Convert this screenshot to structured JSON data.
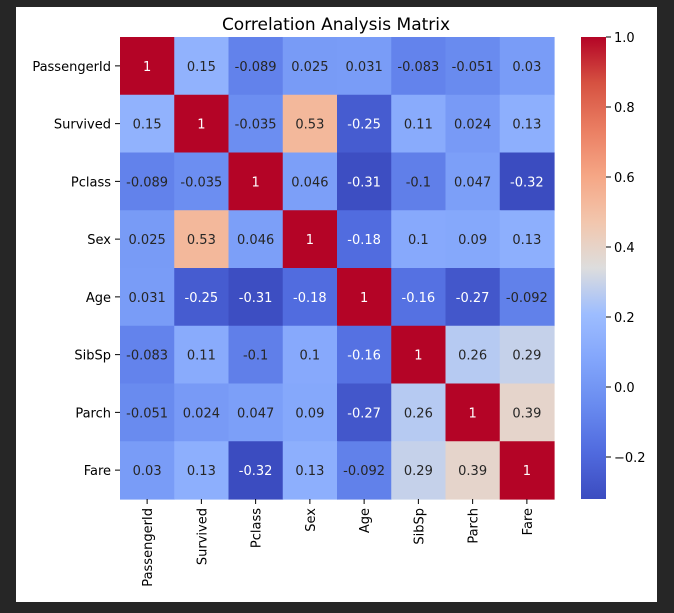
{
  "chart_data": {
    "type": "heatmap",
    "title": "Correlation Analysis Matrix",
    "labels": [
      "PassengerId",
      "Survived",
      "Pclass",
      "Sex",
      "Age",
      "SibSp",
      "Parch",
      "Fare"
    ],
    "matrix": [
      [
        1,
        0.15,
        -0.089,
        0.025,
        0.031,
        -0.083,
        -0.051,
        0.03
      ],
      [
        0.15,
        1,
        -0.035,
        0.53,
        -0.25,
        0.11,
        0.024,
        0.13
      ],
      [
        -0.089,
        -0.035,
        1,
        0.046,
        -0.31,
        -0.1,
        0.047,
        -0.32
      ],
      [
        0.025,
        0.53,
        0.046,
        1,
        -0.18,
        0.1,
        0.09,
        0.13
      ],
      [
        0.031,
        -0.25,
        -0.31,
        -0.18,
        1,
        -0.16,
        -0.27,
        -0.092
      ],
      [
        -0.083,
        0.11,
        -0.1,
        0.1,
        -0.16,
        1,
        0.26,
        0.29
      ],
      [
        -0.051,
        0.024,
        0.047,
        0.09,
        -0.27,
        0.26,
        1,
        0.39
      ],
      [
        0.03,
        0.13,
        -0.32,
        0.13,
        -0.092,
        0.29,
        0.39,
        1
      ]
    ],
    "annotation_labels": [
      [
        "1",
        "0.15",
        "-0.089",
        "0.025",
        "0.031",
        "-0.083",
        "-0.051",
        "0.03"
      ],
      [
        "0.15",
        "1",
        "-0.035",
        "0.53",
        "-0.25",
        "0.11",
        "0.024",
        "0.13"
      ],
      [
        "-0.089",
        "-0.035",
        "1",
        "0.046",
        "-0.31",
        "-0.1",
        "0.047",
        "-0.32"
      ],
      [
        "0.025",
        "0.53",
        "0.046",
        "1",
        "-0.18",
        "0.1",
        "0.09",
        "0.13"
      ],
      [
        "0.031",
        "-0.25",
        "-0.31",
        "-0.18",
        "1",
        "-0.16",
        "-0.27",
        "-0.092"
      ],
      [
        "-0.083",
        "0.11",
        "-0.1",
        "0.1",
        "-0.16",
        "1",
        "0.26",
        "0.29"
      ],
      [
        "-0.051",
        "0.024",
        "0.047",
        "0.09",
        "-0.27",
        "0.26",
        "1",
        "0.39"
      ],
      [
        "0.03",
        "0.13",
        "-0.32",
        "0.13",
        "-0.092",
        "0.29",
        "0.39",
        "1"
      ]
    ],
    "colormap": "coolwarm",
    "colorbar": {
      "vmin": -0.32,
      "vmax": 1.0,
      "ticks": [
        1.0,
        0.8,
        0.6,
        0.4,
        0.2,
        0.0,
        -0.2
      ],
      "tick_labels": [
        "1.0",
        "0.8",
        "0.6",
        "0.4",
        "0.2",
        "0.0",
        "−0.2"
      ]
    },
    "xlabel": "",
    "ylabel": "",
    "grid": false,
    "colors": {
      "low": "#3b4cc0",
      "mid": "#dddddd",
      "high": "#b40426"
    }
  }
}
